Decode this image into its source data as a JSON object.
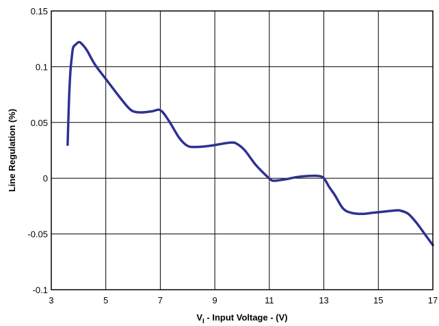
{
  "chart_data": {
    "type": "line",
    "title": "",
    "xlabel_main": "V",
    "xlabel_sub": "I",
    "xlabel_rest": " - Input Voltage - (V)",
    "ylabel": "Line Regulation (%)",
    "xlim": [
      3,
      17
    ],
    "ylim": [
      -0.1,
      0.15
    ],
    "x_ticks": [
      3,
      5,
      7,
      9,
      11,
      13,
      15,
      17
    ],
    "y_ticks": [
      -0.1,
      -0.05,
      0,
      0.05,
      0.1,
      0.15
    ],
    "x_tick_labels": [
      "3",
      "5",
      "7",
      "9",
      "11",
      "13",
      "15",
      "17"
    ],
    "y_tick_labels": [
      "-0.1",
      "-0.05",
      "0",
      "0.05",
      "0.1",
      "0.15"
    ],
    "grid": true,
    "line_color": "#2e3192",
    "series": [
      {
        "x": [
          3.6,
          3.65,
          3.7,
          3.75,
          3.8,
          3.9,
          4.0,
          4.1,
          4.3,
          4.6,
          5.0,
          5.5,
          5.8,
          6.0,
          6.3,
          6.7,
          7.0,
          7.3,
          7.7,
          8.0,
          8.3,
          8.8,
          9.3,
          9.6,
          9.8,
          10.1,
          10.5,
          10.9,
          11.1,
          11.3,
          11.6,
          12.0,
          12.4,
          12.8,
          13.0,
          13.2,
          13.4,
          13.7,
          14.0,
          14.4,
          14.8,
          15.2,
          15.6,
          15.8,
          16.1,
          16.4,
          16.7,
          17.0
        ],
        "y": [
          0.03,
          0.07,
          0.095,
          0.108,
          0.117,
          0.12,
          0.122,
          0.121,
          0.115,
          0.102,
          0.089,
          0.073,
          0.064,
          0.06,
          0.059,
          0.06,
          0.061,
          0.052,
          0.036,
          0.029,
          0.028,
          0.029,
          0.031,
          0.032,
          0.031,
          0.025,
          0.012,
          0.002,
          -0.002,
          -0.002,
          -0.001,
          0.001,
          0.002,
          0.002,
          0.0,
          -0.008,
          -0.015,
          -0.027,
          -0.031,
          -0.032,
          -0.031,
          -0.03,
          -0.029,
          -0.029,
          -0.032,
          -0.04,
          -0.05,
          -0.06
        ]
      }
    ]
  }
}
